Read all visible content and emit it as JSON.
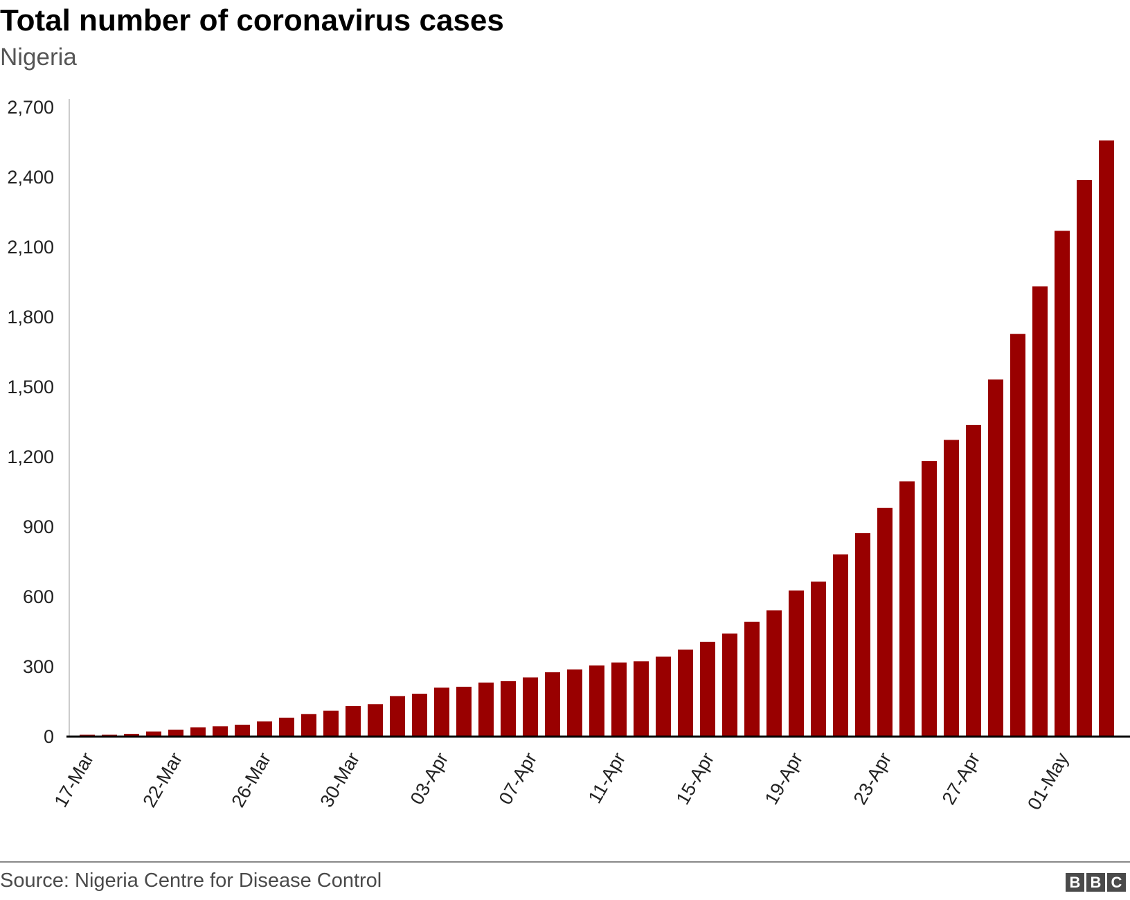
{
  "chart_data": {
    "type": "bar",
    "title": "Total number of coronavirus cases",
    "subtitle": "Nigeria",
    "xlabel": "",
    "ylabel": "",
    "ylim": [
      0,
      2700
    ],
    "yticks": [
      0,
      300,
      600,
      900,
      1200,
      1500,
      1800,
      2100,
      2400,
      2700
    ],
    "ytick_labels": [
      "0",
      "300",
      "600",
      "900",
      "1,200",
      "1,500",
      "1,800",
      "2,100",
      "2,400",
      "2,700"
    ],
    "categories": [
      "17-Mar",
      "",
      "",
      "",
      "22-Mar",
      "",
      "",
      "",
      "26-Mar",
      "",
      "",
      "",
      "30-Mar",
      "",
      "",
      "",
      "03-Apr",
      "",
      "",
      "",
      "07-Apr",
      "",
      "",
      "",
      "11-Apr",
      "",
      "",
      "",
      "15-Apr",
      "",
      "",
      "",
      "19-Apr",
      "",
      "",
      "",
      "23-Apr",
      "",
      "",
      "",
      "27-Apr",
      "",
      "",
      "",
      "01-May",
      "",
      ""
    ],
    "values": [
      8,
      8,
      12,
      22,
      30,
      40,
      44,
      51,
      65,
      81,
      97,
      111,
      131,
      139,
      174,
      184,
      210,
      214,
      232,
      238,
      254,
      276,
      288,
      305,
      318,
      323,
      343,
      373,
      407,
      442,
      493,
      542,
      627,
      665,
      782,
      873,
      981,
      1095,
      1182,
      1273,
      1337,
      1532,
      1728,
      1932,
      2170,
      2388,
      2558
    ],
    "bar_color": "#990000",
    "grid": false,
    "source": "Source: Nigeria Centre for Disease Control",
    "logo": "BBC"
  }
}
